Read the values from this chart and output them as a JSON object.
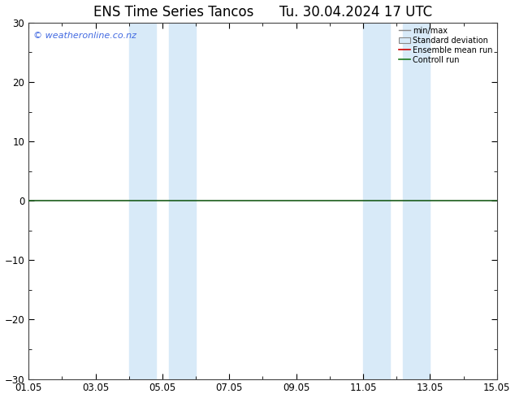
{
  "title": "ENS Time Series Tancos      Tu. 30.04.2024 17 UTC",
  "ylim": [
    -30,
    30
  ],
  "yticks": [
    -30,
    -20,
    -10,
    0,
    10,
    20,
    30
  ],
  "xtick_labels": [
    "01.05",
    "03.05",
    "05.05",
    "07.05",
    "09.05",
    "11.05",
    "13.05",
    "15.05"
  ],
  "xtick_positions": [
    0,
    2,
    4,
    6,
    8,
    10,
    12,
    14
  ],
  "xlim": [
    0,
    14
  ],
  "watermark": "© weatheronline.co.nz",
  "background_color": "#ffffff",
  "plot_bg_color": "#ffffff",
  "shade_color": "#d8eaf8",
  "shade_regions": [
    [
      3.0,
      3.8
    ],
    [
      4.2,
      5.0
    ],
    [
      10.0,
      10.8
    ],
    [
      11.2,
      12.0
    ]
  ],
  "zero_line_color": "#1a5c1a",
  "legend_items": [
    "min/max",
    "Standard deviation",
    "Ensemble mean run",
    "Controll run"
  ],
  "legend_colors": [
    "#888888",
    "#cccccc",
    "#cc0000",
    "#1a7a1a"
  ],
  "title_fontsize": 12,
  "tick_fontsize": 8.5,
  "watermark_color": "#4169E1",
  "watermark_fontsize": 8
}
